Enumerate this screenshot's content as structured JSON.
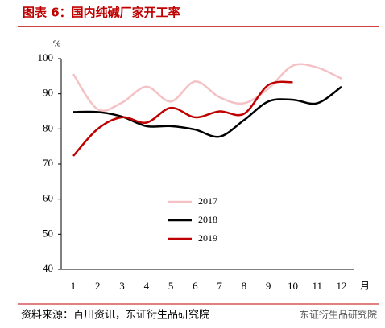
{
  "chart_data": {
    "type": "line",
    "title": "图表 6：国内纯碱厂家开工率",
    "y_label": "%",
    "x_label": "月",
    "categories": [
      "1",
      "2",
      "3",
      "4",
      "5",
      "6",
      "7",
      "8",
      "9",
      "10",
      "11",
      "12"
    ],
    "series": [
      {
        "name": "2017",
        "color": "#f4c1c4",
        "values": [
          95.6,
          85.6,
          87.5,
          92,
          87.8,
          93.5,
          89,
          87.3,
          91.5,
          98,
          97.5,
          94.3
        ]
      },
      {
        "name": "2018",
        "color": "#000000",
        "values": [
          84.8,
          84.8,
          83.5,
          80.8,
          80.8,
          79.8,
          77.8,
          82.5,
          87.8,
          88.3,
          87.3,
          92
        ]
      },
      {
        "name": "2019",
        "color": "#c00000",
        "values": [
          72.3,
          80,
          83.3,
          81.8,
          86,
          83.3,
          85,
          84.3,
          92.5,
          93.3,
          null,
          null
        ]
      }
    ],
    "ylim": [
      40,
      100
    ],
    "yticks": [
      40,
      50,
      60,
      70,
      80,
      90,
      100
    ],
    "grid": false,
    "legend": "lower-center",
    "source": "资料来源：百川资讯，东证衍生品研究院",
    "watermark": "东证衍生品研究院"
  }
}
